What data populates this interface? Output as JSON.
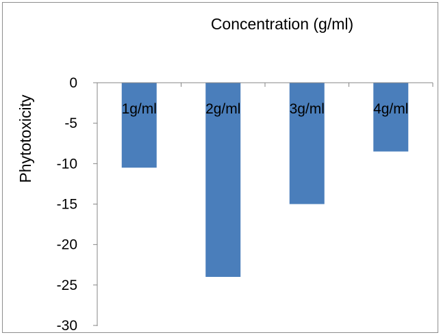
{
  "chart_data": {
    "type": "bar",
    "title": "Concentration (g/ml)",
    "ylabel": "Phytotoxicity",
    "categories": [
      "1g/ml",
      "2g/ml",
      "3g/ml",
      "4g/ml"
    ],
    "values": [
      -10.5,
      -24.0,
      -15.0,
      -8.5
    ],
    "ylim": [
      -30,
      0
    ],
    "yticks": [
      0,
      -5,
      -10,
      -15,
      -20,
      -25,
      -30
    ],
    "ytick_labels": [
      "0",
      "-5",
      "-10",
      "-15",
      "-20",
      "-25",
      "-30"
    ],
    "grid": false,
    "legend": "none",
    "bar_color": "#4a7ebb",
    "category_labels_position": "top, along zero line"
  }
}
